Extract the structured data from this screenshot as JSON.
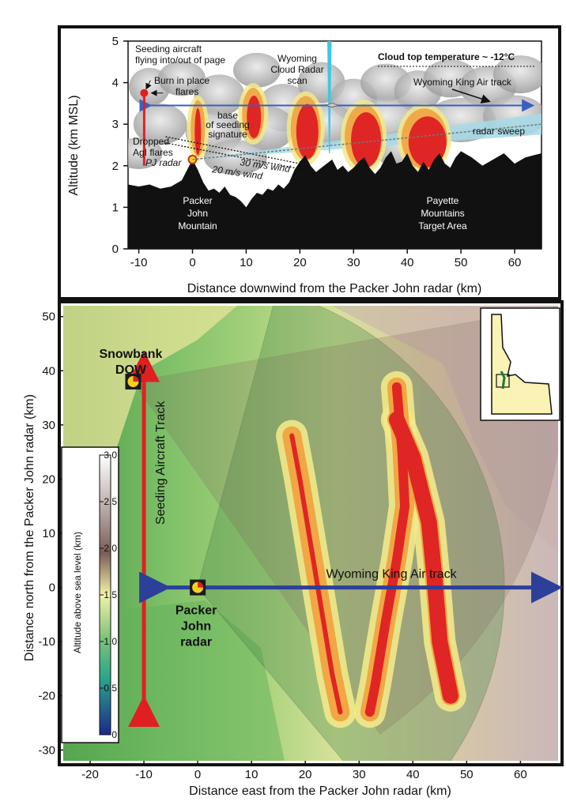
{
  "chart_data": [
    {
      "type": "area",
      "title": "",
      "xlabel": "Distance downwind from the Packer John radar (km)",
      "ylabel": "Altitude (km MSL)",
      "xlim": [
        -12,
        65
      ],
      "ylim": [
        0,
        5
      ],
      "x_ticks": [
        -10,
        0,
        10,
        20,
        30,
        40,
        50,
        60
      ],
      "y_ticks": [
        0,
        1,
        2,
        3,
        4,
        5
      ],
      "terrain": {
        "x": [
          -12,
          -10,
          -8,
          -6,
          -4,
          -2,
          -1,
          0,
          1,
          2,
          3,
          4,
          5,
          6,
          7,
          8,
          9,
          10,
          11,
          12,
          13,
          14,
          15,
          16,
          17,
          18,
          19,
          20,
          21,
          22,
          23,
          24,
          25,
          26,
          27,
          28,
          29,
          30,
          31,
          32,
          33,
          34,
          35,
          36,
          37,
          38,
          39,
          40,
          41,
          42,
          43,
          44,
          45,
          46,
          47,
          48,
          49,
          50,
          52,
          54,
          56,
          58,
          60,
          62,
          65
        ],
        "y": [
          1.55,
          1.5,
          1.55,
          1.45,
          1.5,
          1.65,
          1.9,
          2.15,
          1.9,
          1.6,
          1.4,
          1.45,
          1.35,
          1.5,
          1.3,
          1.25,
          1.15,
          1.0,
          1.2,
          1.35,
          1.3,
          1.45,
          1.4,
          1.55,
          1.45,
          1.6,
          1.9,
          2.1,
          2.25,
          2.0,
          1.85,
          1.95,
          2.05,
          2.15,
          1.9,
          2.0,
          1.85,
          1.95,
          2.1,
          2.2,
          1.95,
          1.8,
          1.95,
          2.2,
          2.35,
          2.05,
          2.1,
          2.3,
          2.0,
          1.85,
          2.1,
          1.9,
          2.15,
          2.3,
          2.05,
          1.95,
          2.2,
          2.35,
          2.2,
          2.0,
          2.15,
          2.3,
          2.05,
          2.2,
          2.3
        ]
      },
      "seeding_plumes": [
        {
          "x": 1,
          "top": 3.5,
          "bottom": 2.3
        },
        {
          "x": 11,
          "top": 3.8,
          "bottom": 2.7
        },
        {
          "x": 20.5,
          "top": 3.6,
          "bottom": 2.2
        },
        {
          "x": 31,
          "top": 3.4,
          "bottom": 2.0
        },
        {
          "x": 42,
          "top": 3.3,
          "bottom": 2.0
        }
      ],
      "king_air_track": {
        "altitude": 3.45,
        "x_range": [
          -9,
          64
        ]
      },
      "seeding_aircraft": {
        "x": -9,
        "altitude": 3.75
      },
      "pj_radar": {
        "x": 0,
        "altitude": 2.15
      },
      "wcr_x": 25.5,
      "annotations": {
        "seeding_aircraft": "Seeding aircraft flying into/out of page",
        "burn_in_place": "Burn in place flares",
        "wyoming_cloud_radar": "Wyoming Cloud Radar scan",
        "cloud_top": "Cloud top temperature ~ -12°C",
        "king_air": "Wyoming King Air track",
        "radar_sweep": "radar sweep",
        "base_seeding": "base of seeding signature",
        "dropped_flares": "Dropped AgI flares",
        "pj_radar": "PJ radar",
        "wind30": "30 m/s wind",
        "wind20": "20 m/s wind",
        "packer_john": "Packer John Mountain",
        "payette": "Payette Mountains Target Area"
      }
    },
    {
      "type": "heatmap",
      "title": "",
      "xlabel": "Distance east from the Packer John radar (km)",
      "ylabel": "Distance north from the Packer John radar (km)",
      "xlim": [
        -25,
        67
      ],
      "ylim": [
        -32,
        52
      ],
      "x_ticks": [
        -20,
        -10,
        0,
        10,
        20,
        30,
        40,
        50,
        60
      ],
      "y_ticks": [
        -30,
        -20,
        -10,
        0,
        10,
        20,
        30,
        40,
        50
      ],
      "colorbar": {
        "label": "Altitude above sea level (km)",
        "ticks": [
          0,
          0.5,
          1.0,
          1.5,
          2.0,
          2.5,
          3.0
        ],
        "range": [
          0,
          3.0
        ]
      },
      "radar_sector": {
        "center": [
          0,
          0
        ],
        "radius": 57,
        "azimuth_start": 15,
        "azimuth_end": 140
      },
      "snowbank_dow": {
        "x": -12,
        "y": 38,
        "label": "Snowbank DOW"
      },
      "packer_john_radar": {
        "x": 0,
        "y": 0,
        "label": "Packer John radar"
      },
      "seeding_track": {
        "x": -10,
        "y_range": [
          -24,
          42
        ],
        "label": "Seeding Aircraft Track"
      },
      "king_air_track": {
        "y": 0,
        "x_range": [
          -10,
          67
        ],
        "label": "Wyoming King Air track"
      },
      "seeding_lines": [
        {
          "name": "line-west",
          "points": [
            [
              17.5,
              28
            ],
            [
              19,
              20
            ],
            [
              21,
              8
            ],
            [
              23,
              -4
            ],
            [
              25,
              -16
            ],
            [
              26.5,
              -23
            ]
          ]
        },
        {
          "name": "line-east",
          "points": [
            [
              37,
              37
            ],
            [
              38,
              25
            ],
            [
              38.5,
              15
            ],
            [
              37,
              5
            ],
            [
              35,
              -6
            ],
            [
              33,
              -18
            ],
            [
              32,
              -23
            ]
          ]
        },
        {
          "name": "line-main",
          "points": [
            [
              37,
              31
            ],
            [
              40,
              24
            ],
            [
              43,
              12
            ],
            [
              44,
              2
            ],
            [
              45,
              -10
            ],
            [
              47,
              -20
            ]
          ]
        }
      ]
    }
  ]
}
